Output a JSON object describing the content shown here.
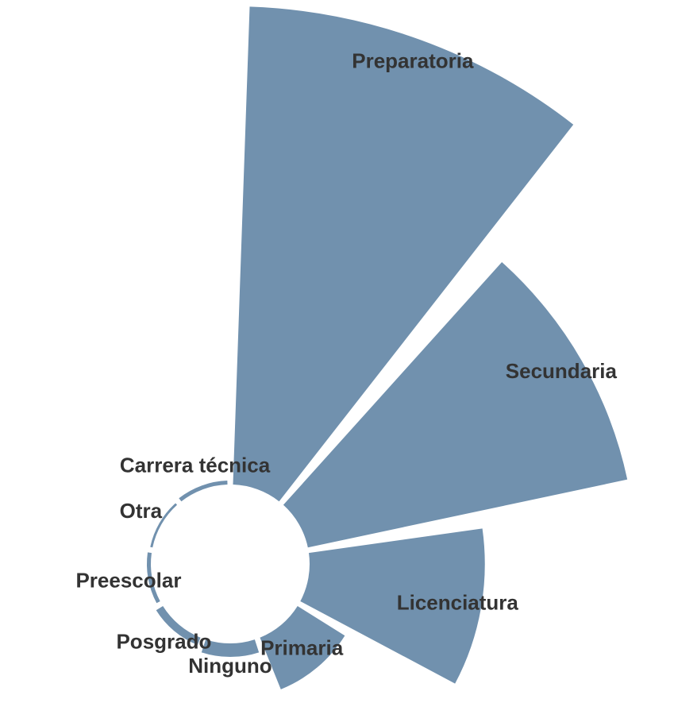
{
  "chart_data": {
    "type": "radial-bar",
    "categories": [
      "Preparatoria",
      "Secundaria",
      "Licenciatura",
      "Primaria",
      "Ninguno",
      "Posgrado",
      "Preescolar",
      "Otra",
      "Carrera técnica"
    ],
    "values": [
      600,
      410,
      220,
      70,
      17,
      10,
      5,
      3,
      5
    ],
    "color": "#7191ae"
  }
}
